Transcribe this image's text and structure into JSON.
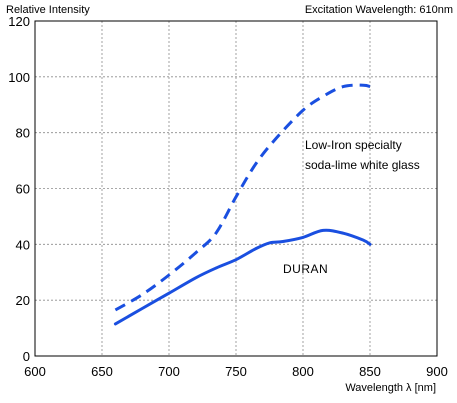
{
  "chart_data": {
    "type": "line",
    "ylabel": "Relative Intensity",
    "header_right": "Excitation Wavelength: 610nm",
    "xlabel": "Wavelength λ [nm]",
    "xlim": [
      600,
      900
    ],
    "ylim": [
      0,
      120
    ],
    "x_ticks": [
      "600",
      "650",
      "700",
      "750",
      "800",
      "850",
      "900"
    ],
    "y_ticks": [
      "0",
      "20",
      "40",
      "60",
      "80",
      "100",
      "120"
    ],
    "grid": true,
    "series": [
      {
        "name": "Low-Iron specialty soda-lime white glass",
        "label_lines": [
          "Low-Iron specialty",
          "soda-lime white glass"
        ],
        "style": "dashed",
        "color": "#1a4fe0",
        "points": [
          [
            660,
            16.5
          ],
          [
            680,
            22
          ],
          [
            700,
            29
          ],
          [
            720,
            37
          ],
          [
            735,
            44
          ],
          [
            750,
            57
          ],
          [
            765,
            69
          ],
          [
            780,
            78
          ],
          [
            800,
            88
          ],
          [
            815,
            93
          ],
          [
            830,
            96.5
          ],
          [
            845,
            97
          ],
          [
            850,
            96.5
          ]
        ]
      },
      {
        "name": "DURAN",
        "label_lines": [
          "DURAN"
        ],
        "style": "solid",
        "color": "#1a4fe0",
        "points": [
          [
            660,
            11.5
          ],
          [
            680,
            17
          ],
          [
            700,
            22.5
          ],
          [
            720,
            28
          ],
          [
            735,
            31.5
          ],
          [
            750,
            34.5
          ],
          [
            765,
            38.5
          ],
          [
            775,
            40.5
          ],
          [
            785,
            41
          ],
          [
            800,
            42.5
          ],
          [
            815,
            45
          ],
          [
            830,
            44
          ],
          [
            845,
            41.5
          ],
          [
            850,
            40
          ]
        ]
      }
    ]
  }
}
